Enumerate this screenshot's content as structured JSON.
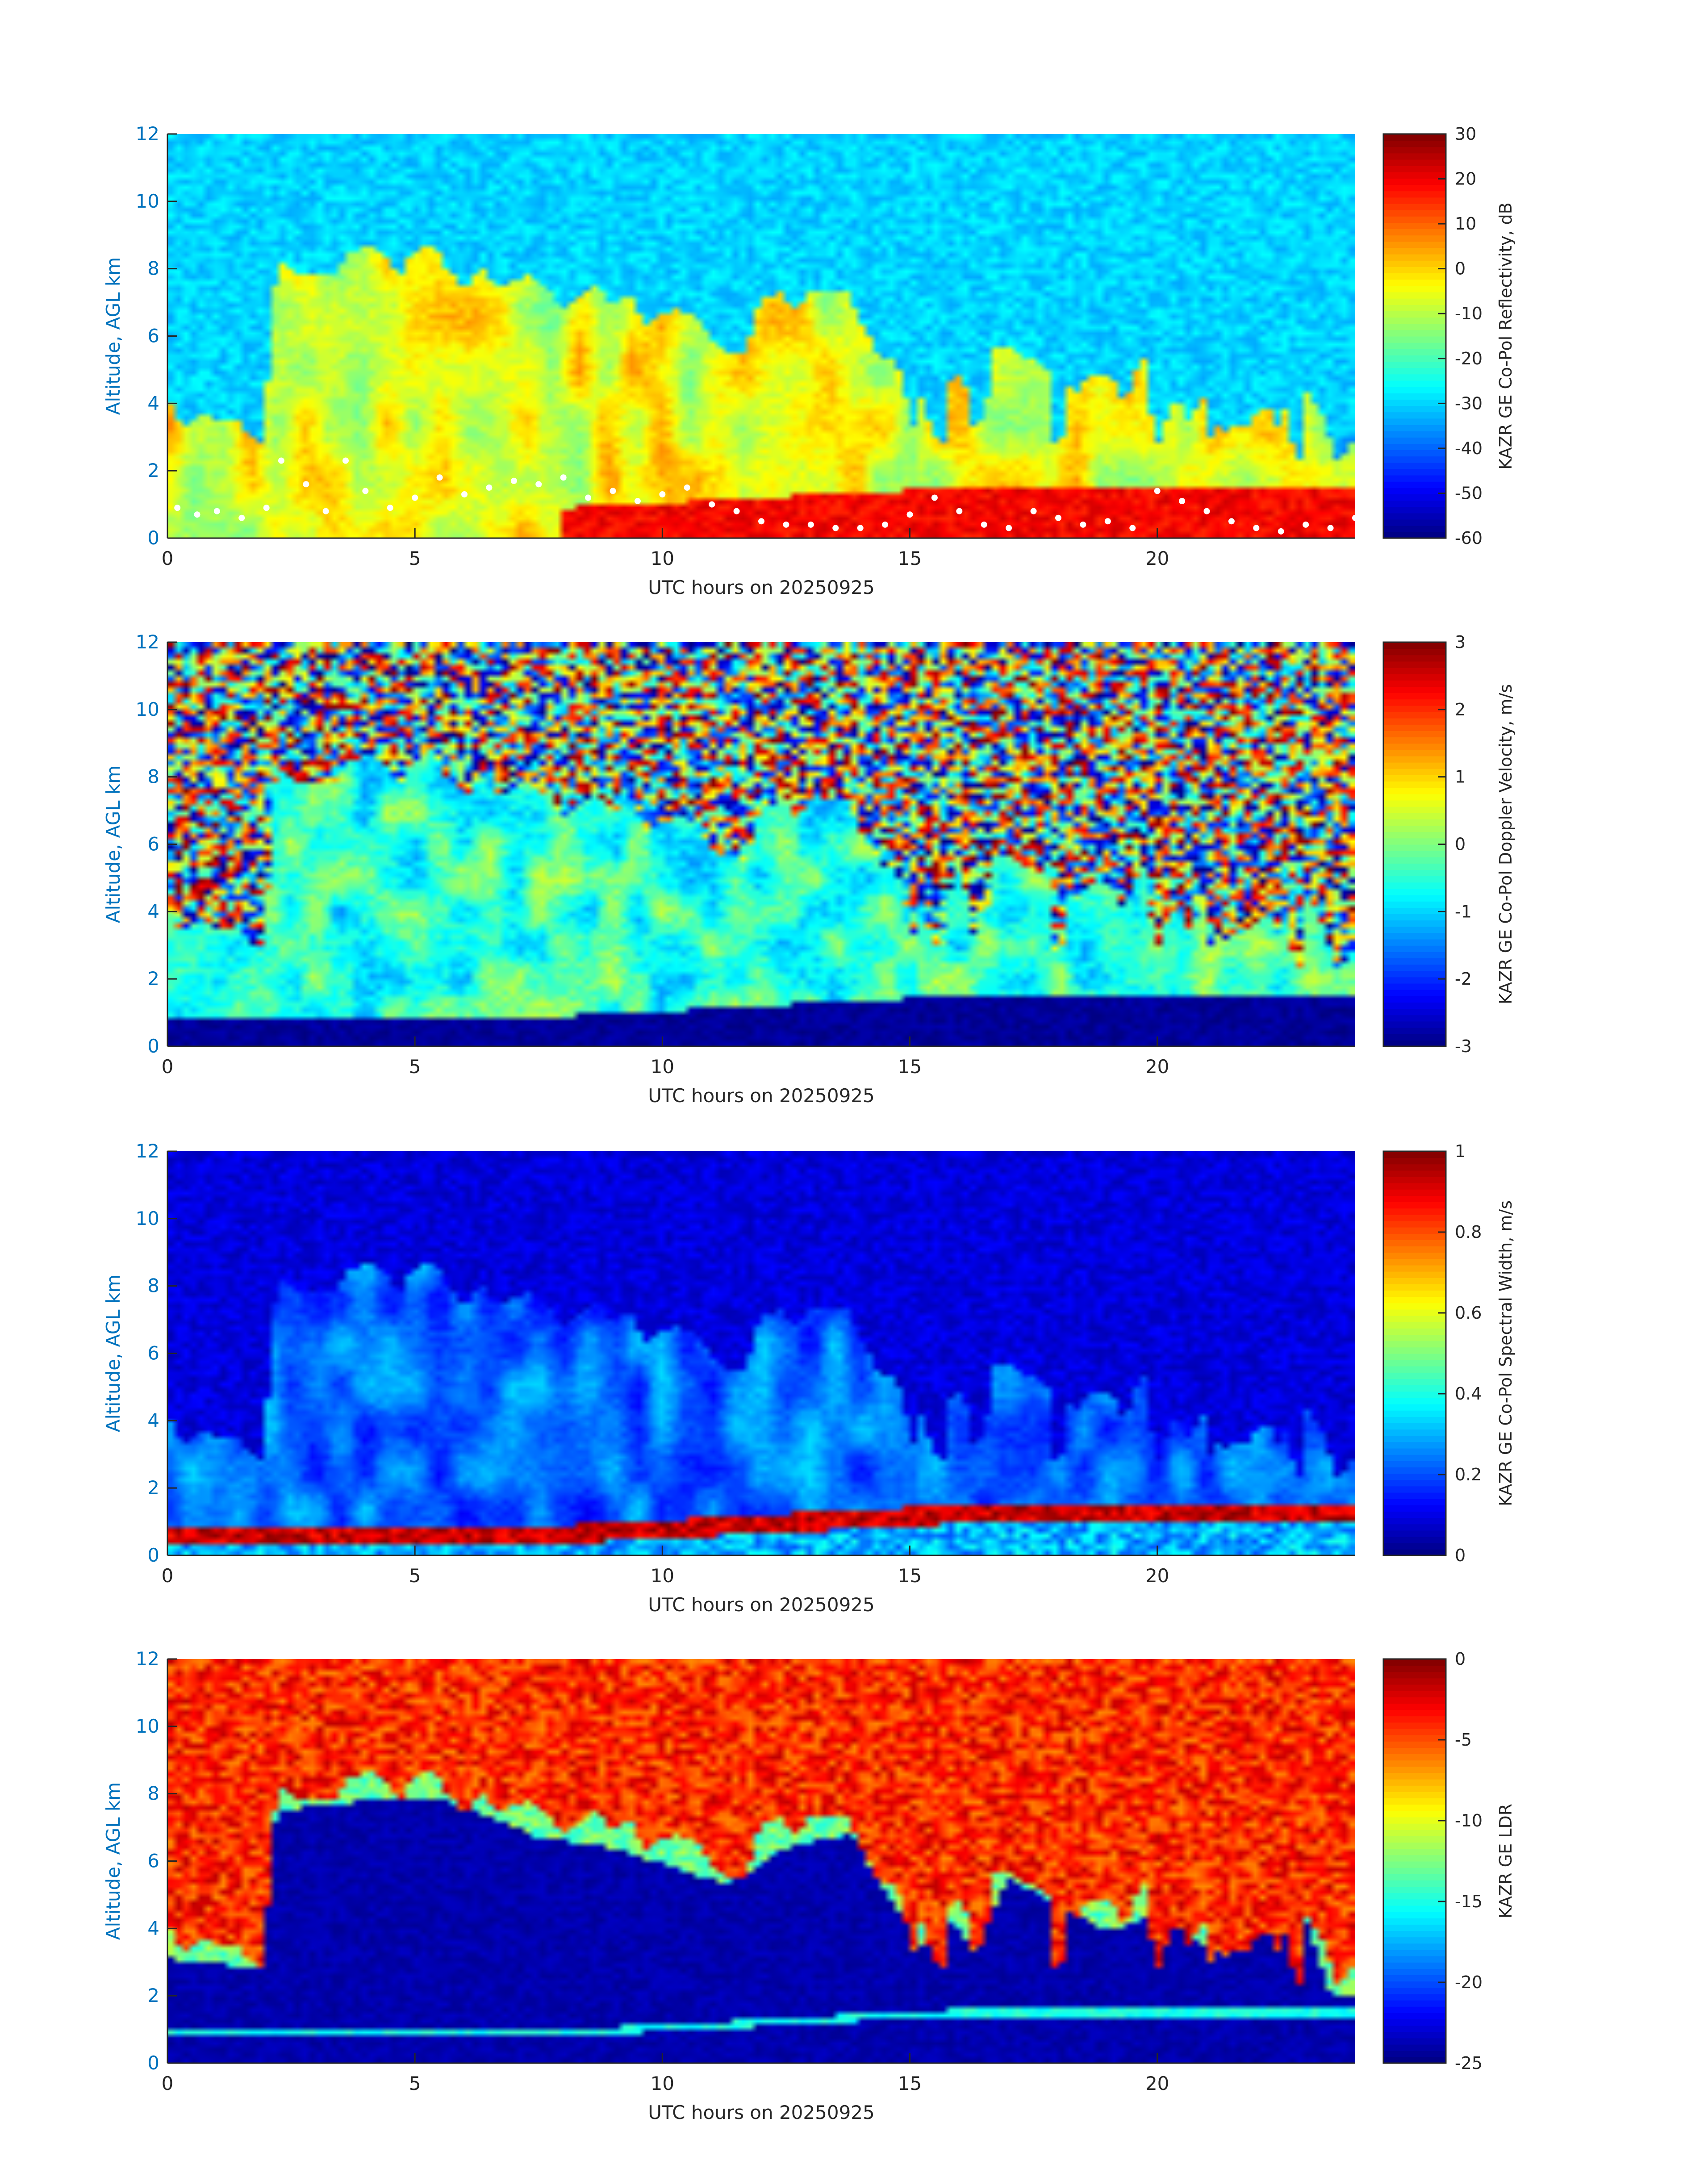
{
  "chart_data": [
    {
      "type": "heatmap",
      "variable": "reflectivity",
      "xlabel": "UTC hours on 20250925",
      "ylabel": "Altitude, AGL km",
      "xlim": [
        0,
        24
      ],
      "ylim": [
        0,
        12
      ],
      "xticks": [
        0,
        5,
        10,
        15,
        20
      ],
      "yticks": [
        0,
        2,
        4,
        6,
        8,
        10,
        12
      ],
      "colorbar": {
        "label": "KAZR GE Co-Pol Reflectivity, dB",
        "range": [
          -60,
          30
        ],
        "ticks": [
          -60,
          -50,
          -40,
          -30,
          -20,
          -10,
          0,
          10,
          20,
          30
        ],
        "colormap": "jet"
      },
      "overlay": {
        "marker": "white-dots",
        "points": [
          [
            0.2,
            0.9
          ],
          [
            0.6,
            0.7
          ],
          [
            1.0,
            0.8
          ],
          [
            1.5,
            0.6
          ],
          [
            2.0,
            0.9
          ],
          [
            2.3,
            2.3
          ],
          [
            2.8,
            1.6
          ],
          [
            3.2,
            0.8
          ],
          [
            3.6,
            2.3
          ],
          [
            4.0,
            1.4
          ],
          [
            4.5,
            0.9
          ],
          [
            5.0,
            1.2
          ],
          [
            5.5,
            1.8
          ],
          [
            6.0,
            1.3
          ],
          [
            6.5,
            1.5
          ],
          [
            7.0,
            1.7
          ],
          [
            7.5,
            1.6
          ],
          [
            8.0,
            1.8
          ],
          [
            8.5,
            1.2
          ],
          [
            9.0,
            1.4
          ],
          [
            9.5,
            1.1
          ],
          [
            10.0,
            1.3
          ],
          [
            10.5,
            1.5
          ],
          [
            11.0,
            1.0
          ],
          [
            11.5,
            0.8
          ],
          [
            12.0,
            0.5
          ],
          [
            12.5,
            0.4
          ],
          [
            13.0,
            0.4
          ],
          [
            13.5,
            0.3
          ],
          [
            14.0,
            0.3
          ],
          [
            14.5,
            0.4
          ],
          [
            15.0,
            0.7
          ],
          [
            15.5,
            1.2
          ],
          [
            16.0,
            0.8
          ],
          [
            16.5,
            0.4
          ],
          [
            17.0,
            0.3
          ],
          [
            17.5,
            0.8
          ],
          [
            18.0,
            0.6
          ],
          [
            18.5,
            0.4
          ],
          [
            19.0,
            0.5
          ],
          [
            19.5,
            0.3
          ],
          [
            20.0,
            1.4
          ],
          [
            20.5,
            1.1
          ],
          [
            21.0,
            0.8
          ],
          [
            21.5,
            0.5
          ],
          [
            22.0,
            0.3
          ],
          [
            22.5,
            0.2
          ],
          [
            23.0,
            0.4
          ],
          [
            23.5,
            0.3
          ],
          [
            24.0,
            0.6
          ]
        ]
      }
    },
    {
      "type": "heatmap",
      "variable": "velocity",
      "xlabel": "UTC hours on 20250925",
      "ylabel": "Altitude, AGL km",
      "xlim": [
        0,
        24
      ],
      "ylim": [
        0,
        12
      ],
      "xticks": [
        0,
        5,
        10,
        15,
        20
      ],
      "yticks": [
        0,
        2,
        4,
        6,
        8,
        10,
        12
      ],
      "colorbar": {
        "label": "KAZR GE Co-Pol Doppler Velocity, m/s",
        "range": [
          -3,
          3
        ],
        "ticks": [
          -3,
          -2,
          -1,
          0,
          1,
          2,
          3
        ],
        "colormap": "jet"
      }
    },
    {
      "type": "heatmap",
      "variable": "spectral_width",
      "xlabel": "UTC hours on 20250925",
      "ylabel": "Altitude, AGL km",
      "xlim": [
        0,
        24
      ],
      "ylim": [
        0,
        12
      ],
      "xticks": [
        0,
        5,
        10,
        15,
        20
      ],
      "yticks": [
        0,
        2,
        4,
        6,
        8,
        10,
        12
      ],
      "colorbar": {
        "label": "KAZR GE Co-Pol Spectral Width, m/s",
        "range": [
          0,
          1
        ],
        "ticks": [
          0,
          0.2,
          0.4,
          0.6,
          0.8,
          1
        ],
        "colormap": "jet"
      }
    },
    {
      "type": "heatmap",
      "variable": "ldr",
      "xlabel": "UTC hours on 20250925",
      "ylabel": "Altitude, AGL km",
      "xlim": [
        0,
        24
      ],
      "ylim": [
        0,
        12
      ],
      "xticks": [
        0,
        5,
        10,
        15,
        20
      ],
      "yticks": [
        0,
        2,
        4,
        6,
        8,
        10,
        12
      ],
      "colorbar": {
        "label": "KAZR GE LDR",
        "range": [
          -25,
          0
        ],
        "ticks": [
          -25,
          -20,
          -15,
          -10,
          -5,
          0
        ],
        "colormap": "jet"
      }
    }
  ]
}
